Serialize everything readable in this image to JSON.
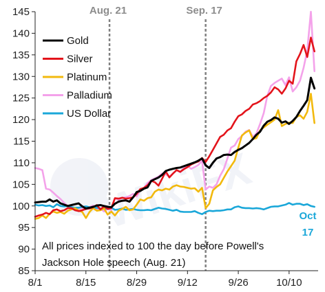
{
  "chart_data": {
    "type": "line",
    "title": "",
    "xlabel": "",
    "ylabel": "",
    "ylim": [
      85,
      145
    ],
    "yticks": [
      85,
      90,
      95,
      100,
      105,
      110,
      115,
      120,
      125,
      130,
      135,
      140,
      145
    ],
    "xticks": [
      "8/1",
      "8/15",
      "8/29",
      "9/12",
      "9/26",
      "10/10"
    ],
    "xtick_days": [
      0,
      14,
      28,
      42,
      56,
      70
    ],
    "x_axis_range_days": [
      0,
      78
    ],
    "grid": false,
    "legend_position": "top-left",
    "events": [
      {
        "label": "Aug. 21",
        "day": 20.5
      },
      {
        "label": "Sep. 17",
        "day": 47
      }
    ],
    "note_lines": [
      "All prices indexed to 100 the day before Powell's",
      "Jackson Hole speech (Aug. 21)"
    ],
    "end_annotation": {
      "lines": [
        "Oct",
        "17"
      ],
      "color": "#1aa7d9"
    },
    "x": [
      0,
      1,
      2,
      3,
      4,
      5,
      6,
      7,
      8,
      9,
      10,
      11,
      12,
      13,
      14,
      15,
      16,
      17,
      18,
      19,
      20,
      21,
      22,
      23,
      24,
      25,
      26,
      27,
      28,
      29,
      30,
      31,
      32,
      33,
      34,
      35,
      36,
      37,
      38,
      39,
      40,
      41,
      42,
      43,
      44,
      45,
      46,
      47,
      48,
      49,
      50,
      51,
      52,
      53,
      54,
      55,
      56,
      57,
      58,
      59,
      60,
      61,
      62,
      63,
      64,
      65,
      66,
      67,
      68,
      69,
      70,
      71,
      72,
      73,
      74,
      75,
      76,
      77
    ],
    "series": [
      {
        "name": "Gold",
        "color": "#000000",
        "values": [
          100.8,
          100.9,
          101.0,
          101.0,
          101.5,
          101.0,
          101.3,
          100.6,
          100.3,
          100.0,
          100.2,
          100.4,
          100.6,
          99.9,
          99.4,
          99.6,
          99.8,
          100.1,
          100.2,
          100.0,
          99.8,
          99.7,
          100.5,
          101.0,
          101.2,
          101.3,
          101.0,
          102.0,
          103.2,
          103.5,
          104.0,
          104.3,
          105.8,
          106.2,
          106.6,
          107.2,
          108.1,
          108.4,
          108.6,
          108.8,
          108.9,
          109.2,
          109.5,
          109.8,
          110.1,
          110.5,
          111.0,
          109.4,
          108.8,
          110.0,
          111.0,
          111.3,
          111.8,
          111.9,
          111.8,
          112.5,
          113.0,
          113.4,
          114.0,
          114.6,
          115.5,
          116.5,
          117.2,
          118.6,
          119.5,
          119.9,
          120.5,
          120.2,
          119.3,
          119.6,
          119.0,
          119.7,
          120.6,
          122.0,
          123.2,
          124.5,
          129.7,
          127.2
        ]
      },
      {
        "name": "Silver",
        "color": "#e3141b",
        "values": [
          97.5,
          97.8,
          98.0,
          98.4,
          98.1,
          99.0,
          99.2,
          98.8,
          99.0,
          99.5,
          99.5,
          99.0,
          98.8,
          99.0,
          99.3,
          99.4,
          99.7,
          100.2,
          99.2,
          99.9,
          99.3,
          99.5,
          101.8,
          101.7,
          101.9,
          101.7,
          101.8,
          102.0,
          102.8,
          103.9,
          104.2,
          104.8,
          105.8,
          105.5,
          104.7,
          106.3,
          108.0,
          106.6,
          107.5,
          108.3,
          107.9,
          108.5,
          109.0,
          109.6,
          110.0,
          110.3,
          111.1,
          110.2,
          111.5,
          113.0,
          114.5,
          116.0,
          116.5,
          117.5,
          118.0,
          119.5,
          120.8,
          121.2,
          122.0,
          122.5,
          123.5,
          123.8,
          124.3,
          125.0,
          125.5,
          126.3,
          127.5,
          127.0,
          126.0,
          127.2,
          129.0,
          128.3,
          133.5,
          135.2,
          137.3,
          134.5,
          139.0,
          135.8
        ]
      },
      {
        "name": "Platinum",
        "color": "#f2b90d",
        "values": [
          97.0,
          97.2,
          97.8,
          97.2,
          98.2,
          98.7,
          98.4,
          98.6,
          98.2,
          98.9,
          99.2,
          99.5,
          98.9,
          98.6,
          97.2,
          98.6,
          99.5,
          98.9,
          99.0,
          99.4,
          98.0,
          98.7,
          97.8,
          98.9,
          99.3,
          99.8,
          99.0,
          99.2,
          100.3,
          101.5,
          101.2,
          101.8,
          102.0,
          103.3,
          103.8,
          103.6,
          104.0,
          103.8,
          104.5,
          104.8,
          104.5,
          104.4,
          104.2,
          104.0,
          104.1,
          103.3,
          104.2,
          99.5,
          100.5,
          103.6,
          104.4,
          105.0,
          106.5,
          108.0,
          109.2,
          110.5,
          113.5,
          116.3,
          117.0,
          117.5,
          115.5,
          115.7,
          117.5,
          118.2,
          118.8,
          119.4,
          120.0,
          122.2,
          118.5,
          119.0,
          119.3,
          119.2,
          120.6,
          121.0,
          120.2,
          121.8,
          126.0,
          119.2
        ]
      },
      {
        "name": "Palladium",
        "color": "#f4a2ea",
        "values": [
          108.8,
          108.6,
          108.3,
          104.0,
          103.8,
          103.1,
          102.3,
          101.6,
          100.7,
          100.0,
          99.8,
          99.2,
          99.3,
          99.5,
          99.3,
          99.7,
          100.1,
          99.2,
          99.4,
          98.7,
          99.3,
          99.0,
          101.8,
          101.4,
          101.9,
          102.0,
          102.3,
          102.8,
          102.2,
          103.6,
          104.2,
          105.3,
          106.0,
          106.4,
          106.8,
          107.5,
          107.3,
          106.8,
          107.5,
          108.3,
          107.8,
          108.9,
          109.3,
          108.6,
          109.0,
          109.5,
          110.5,
          103.8,
          104.5,
          104.2,
          105.0,
          107.0,
          108.5,
          111.0,
          113.5,
          114.0,
          115.5,
          116.2,
          117.2,
          117.6,
          116.0,
          116.8,
          119.0,
          121.5,
          125.5,
          127.8,
          128.5,
          129.0,
          129.5,
          128.0,
          129.8,
          126.5,
          127.5,
          129.0,
          132.0,
          136.0,
          145.0,
          131.2
        ]
      },
      {
        "name": "US Dollar",
        "color": "#1aa7d9",
        "values": [
          100.3,
          100.1,
          100.2,
          100.0,
          100.1,
          99.7,
          100.4,
          100.0,
          99.9,
          100.0,
          99.7,
          99.6,
          99.6,
          99.8,
          99.9,
          99.7,
          99.5,
          99.6,
          99.4,
          99.3,
          99.4,
          99.6,
          99.1,
          99.2,
          99.4,
          99.1,
          99.2,
          99.3,
          99.1,
          99.0,
          99.0,
          99.1,
          99.0,
          99.3,
          99.6,
          99.4,
          99.3,
          99.1,
          98.9,
          99.1,
          98.7,
          98.6,
          98.6,
          98.6,
          98.8,
          98.4,
          98.1,
          98.6,
          98.9,
          98.8,
          98.9,
          98.9,
          99.0,
          99.2,
          99.2,
          99.7,
          99.9,
          99.6,
          99.5,
          99.5,
          99.4,
          99.5,
          99.4,
          99.2,
          99.5,
          99.8,
          99.9,
          99.9,
          100.1,
          100.3,
          100.7,
          100.3,
          100.5,
          100.5,
          100.2,
          100.4,
          100.0,
          99.8
        ]
      }
    ]
  }
}
